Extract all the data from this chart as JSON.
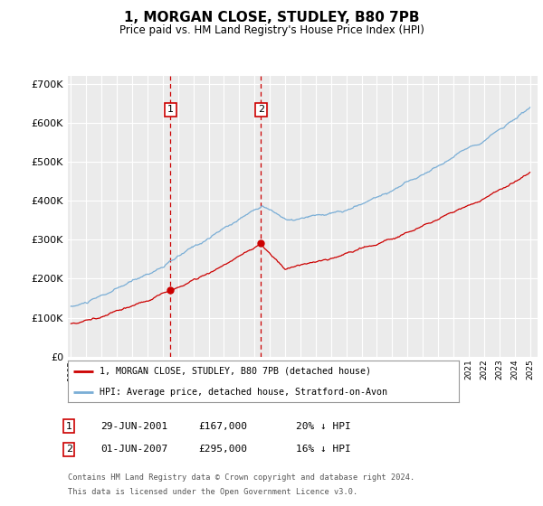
{
  "title": "1, MORGAN CLOSE, STUDLEY, B80 7PB",
  "subtitle": "Price paid vs. HM Land Registry's House Price Index (HPI)",
  "legend_line1": "1, MORGAN CLOSE, STUDLEY, B80 7PB (detached house)",
  "legend_line2": "HPI: Average price, detached house, Stratford-on-Avon",
  "sale1_date": "29-JUN-2001",
  "sale1_price": "£167,000",
  "sale1_hpi": "20% ↓ HPI",
  "sale2_date": "01-JUN-2007",
  "sale2_price": "£295,000",
  "sale2_hpi": "16% ↓ HPI",
  "footnote1": "Contains HM Land Registry data © Crown copyright and database right 2024.",
  "footnote2": "This data is licensed under the Open Government Licence v3.0.",
  "vline_color": "#cc0000",
  "hpi_line_color": "#7aaed6",
  "price_line_color": "#cc0000",
  "background_color": "#ffffff",
  "plot_bg_color": "#ebebeb",
  "ylim": [
    0,
    720000
  ],
  "yticks": [
    0,
    100000,
    200000,
    300000,
    400000,
    500000,
    600000,
    700000
  ],
  "sale1_x": 2001.5,
  "sale2_x": 2007.42,
  "xmin": 1994.8,
  "xmax": 2025.5
}
